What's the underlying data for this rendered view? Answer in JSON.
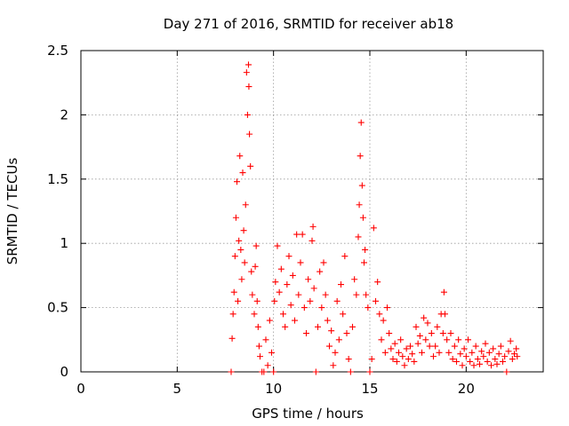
{
  "chart_data": {
    "type": "scatter",
    "title": "Day 271 of 2016, SRMTID for receiver ab18",
    "xlabel": "GPS time / hours",
    "ylabel": "SRMTID / TECUs",
    "xlim": [
      0,
      24
    ],
    "ylim": [
      0,
      2.5
    ],
    "x_ticks": [
      0,
      5,
      10,
      15,
      20
    ],
    "y_ticks": [
      0,
      0.5,
      1,
      1.5,
      2,
      2.5
    ],
    "x_tick_labels": [
      "0",
      "5",
      "10",
      "15",
      "20"
    ],
    "y_tick_labels": [
      "0",
      "0.5",
      "1",
      "1.5",
      "2",
      "2.5"
    ],
    "grid": true,
    "marker": "+",
    "series": [
      {
        "name": "SRMTID",
        "color": "#ff0000",
        "points": [
          [
            7.8,
            0.0
          ],
          [
            7.85,
            0.26
          ],
          [
            7.9,
            0.45
          ],
          [
            7.95,
            0.62
          ],
          [
            8.0,
            0.9
          ],
          [
            8.05,
            1.2
          ],
          [
            8.1,
            1.48
          ],
          [
            8.15,
            0.55
          ],
          [
            8.2,
            1.02
          ],
          [
            8.25,
            1.68
          ],
          [
            8.3,
            0.95
          ],
          [
            8.35,
            0.72
          ],
          [
            8.4,
            1.55
          ],
          [
            8.45,
            1.1
          ],
          [
            8.5,
            0.85
          ],
          [
            8.55,
            1.3
          ],
          [
            8.6,
            2.33
          ],
          [
            8.65,
            2.0
          ],
          [
            8.7,
            2.39
          ],
          [
            8.72,
            2.22
          ],
          [
            8.75,
            1.85
          ],
          [
            8.8,
            1.6
          ],
          [
            8.85,
            0.78
          ],
          [
            8.9,
            0.6
          ],
          [
            9.0,
            0.45
          ],
          [
            9.05,
            0.82
          ],
          [
            9.1,
            0.98
          ],
          [
            9.15,
            0.55
          ],
          [
            9.2,
            0.35
          ],
          [
            9.25,
            0.2
          ],
          [
            9.3,
            0.12
          ],
          [
            9.4,
            0.0
          ],
          [
            9.5,
            0.0
          ],
          [
            9.6,
            0.25
          ],
          [
            9.7,
            0.05
          ],
          [
            9.8,
            0.4
          ],
          [
            9.9,
            0.15
          ],
          [
            10.0,
            0.0
          ],
          [
            10.05,
            0.55
          ],
          [
            10.1,
            0.7
          ],
          [
            10.2,
            0.98
          ],
          [
            10.3,
            0.62
          ],
          [
            10.4,
            0.8
          ],
          [
            10.5,
            0.45
          ],
          [
            10.6,
            0.35
          ],
          [
            10.7,
            0.68
          ],
          [
            10.8,
            0.9
          ],
          [
            10.9,
            0.52
          ],
          [
            11.0,
            0.75
          ],
          [
            11.1,
            0.4
          ],
          [
            11.2,
            1.07
          ],
          [
            11.3,
            0.6
          ],
          [
            11.4,
            0.85
          ],
          [
            11.5,
            1.07
          ],
          [
            11.6,
            0.5
          ],
          [
            11.7,
            0.3
          ],
          [
            11.8,
            0.72
          ],
          [
            11.9,
            0.55
          ],
          [
            12.0,
            1.02
          ],
          [
            12.05,
            1.13
          ],
          [
            12.1,
            0.65
          ],
          [
            12.2,
            0.0
          ],
          [
            12.3,
            0.35
          ],
          [
            12.4,
            0.78
          ],
          [
            12.5,
            0.5
          ],
          [
            12.6,
            0.85
          ],
          [
            12.7,
            0.6
          ],
          [
            12.8,
            0.4
          ],
          [
            12.9,
            0.2
          ],
          [
            13.0,
            0.32
          ],
          [
            13.1,
            0.05
          ],
          [
            13.2,
            0.15
          ],
          [
            13.3,
            0.55
          ],
          [
            13.4,
            0.25
          ],
          [
            13.5,
            0.68
          ],
          [
            13.6,
            0.45
          ],
          [
            13.7,
            0.9
          ],
          [
            13.8,
            0.3
          ],
          [
            13.9,
            0.1
          ],
          [
            14.0,
            0.0
          ],
          [
            14.1,
            0.35
          ],
          [
            14.2,
            0.72
          ],
          [
            14.3,
            0.6
          ],
          [
            14.4,
            1.05
          ],
          [
            14.45,
            1.3
          ],
          [
            14.5,
            1.68
          ],
          [
            14.55,
            1.94
          ],
          [
            14.6,
            1.45
          ],
          [
            14.65,
            1.2
          ],
          [
            14.7,
            0.85
          ],
          [
            14.75,
            0.95
          ],
          [
            14.8,
            0.6
          ],
          [
            14.9,
            0.5
          ],
          [
            15.0,
            0.0
          ],
          [
            15.1,
            0.1
          ],
          [
            15.2,
            1.12
          ],
          [
            15.3,
            0.55
          ],
          [
            15.4,
            0.7
          ],
          [
            15.5,
            0.45
          ],
          [
            15.6,
            0.25
          ],
          [
            15.7,
            0.4
          ],
          [
            15.8,
            0.15
          ],
          [
            15.9,
            0.5
          ],
          [
            16.0,
            0.3
          ],
          [
            16.1,
            0.18
          ],
          [
            16.2,
            0.1
          ],
          [
            16.3,
            0.22
          ],
          [
            16.4,
            0.08
          ],
          [
            16.5,
            0.15
          ],
          [
            16.6,
            0.25
          ],
          [
            16.7,
            0.12
          ],
          [
            16.8,
            0.05
          ],
          [
            16.9,
            0.18
          ],
          [
            17.0,
            0.1
          ],
          [
            17.1,
            0.2
          ],
          [
            17.2,
            0.14
          ],
          [
            17.3,
            0.08
          ],
          [
            17.4,
            0.35
          ],
          [
            17.5,
            0.22
          ],
          [
            17.6,
            0.28
          ],
          [
            17.7,
            0.15
          ],
          [
            17.8,
            0.42
          ],
          [
            17.9,
            0.25
          ],
          [
            18.0,
            0.38
          ],
          [
            18.1,
            0.2
          ],
          [
            18.2,
            0.3
          ],
          [
            18.3,
            0.12
          ],
          [
            18.4,
            0.2
          ],
          [
            18.5,
            0.35
          ],
          [
            18.6,
            0.15
          ],
          [
            18.7,
            0.45
          ],
          [
            18.8,
            0.3
          ],
          [
            18.85,
            0.62
          ],
          [
            18.9,
            0.45
          ],
          [
            19.0,
            0.25
          ],
          [
            19.1,
            0.15
          ],
          [
            19.2,
            0.3
          ],
          [
            19.3,
            0.1
          ],
          [
            19.4,
            0.2
          ],
          [
            19.5,
            0.08
          ],
          [
            19.6,
            0.25
          ],
          [
            19.7,
            0.14
          ],
          [
            19.8,
            0.05
          ],
          [
            19.9,
            0.18
          ],
          [
            20.0,
            0.12
          ],
          [
            20.1,
            0.25
          ],
          [
            20.2,
            0.08
          ],
          [
            20.3,
            0.15
          ],
          [
            20.4,
            0.05
          ],
          [
            20.5,
            0.2
          ],
          [
            20.6,
            0.1
          ],
          [
            20.7,
            0.06
          ],
          [
            20.8,
            0.16
          ],
          [
            20.9,
            0.12
          ],
          [
            21.0,
            0.22
          ],
          [
            21.1,
            0.08
          ],
          [
            21.2,
            0.15
          ],
          [
            21.3,
            0.05
          ],
          [
            21.4,
            0.18
          ],
          [
            21.5,
            0.1
          ],
          [
            21.6,
            0.06
          ],
          [
            21.7,
            0.14
          ],
          [
            21.8,
            0.2
          ],
          [
            21.9,
            0.08
          ],
          [
            22.0,
            0.12
          ],
          [
            22.1,
            0.0
          ],
          [
            22.2,
            0.16
          ],
          [
            22.3,
            0.24
          ],
          [
            22.4,
            0.1
          ],
          [
            22.5,
            0.14
          ],
          [
            22.6,
            0.18
          ],
          [
            22.65,
            0.12
          ]
        ]
      }
    ]
  }
}
